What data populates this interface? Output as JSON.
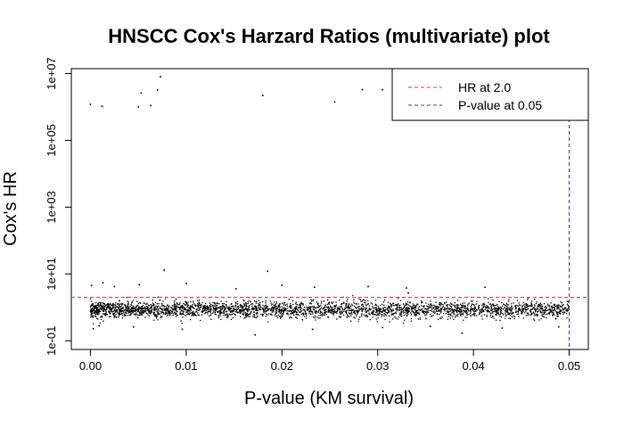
{
  "chart_data": {
    "type": "scatter",
    "title": "HNSCC Cox's Harzard Ratios (multivariate) plot",
    "xlabel": "P-value (KM survival)",
    "ylabel": "Cox's HR",
    "x_ticks": [
      0.0,
      0.01,
      0.02,
      0.03,
      0.04,
      0.05
    ],
    "x_tick_labels": [
      "0.00",
      "0.01",
      "0.02",
      "0.03",
      "0.04",
      "0.05"
    ],
    "y_ticks": [
      0.1,
      10,
      1000,
      100000,
      10000000
    ],
    "y_tick_labels": [
      "1e-01",
      "1e+01",
      "1e+03",
      "1e+05",
      "1e+07"
    ],
    "xlim": [
      -0.002,
      0.052
    ],
    "ylim": [
      0.055,
      14000000
    ],
    "y_scale": "log",
    "grid": false,
    "legend_position": "top-right",
    "hr_line": 2.0,
    "pvalue_line": 0.05,
    "colors": {
      "points": "#000000",
      "hr_line": "#dd3b3b",
      "pvalue_line": "#3b3bdd"
    },
    "legend": [
      {
        "label": "HR at 2.0",
        "color": "#dd3b3b"
      },
      {
        "label": "P-value at 0.05",
        "color": "#3b3bdd"
      }
    ],
    "outliers": [
      {
        "x": 0.0,
        "y": 1200000
      },
      {
        "x": 0.0012,
        "y": 1050000
      },
      {
        "x": 0.005,
        "y": 1000000
      },
      {
        "x": 0.0053,
        "y": 2600000
      },
      {
        "x": 0.0063,
        "y": 1100000
      },
      {
        "x": 0.007,
        "y": 3200000
      },
      {
        "x": 0.0073,
        "y": 8000000
      },
      {
        "x": 0.018,
        "y": 2200000
      },
      {
        "x": 0.0255,
        "y": 1400000
      },
      {
        "x": 0.0284,
        "y": 3300000
      },
      {
        "x": 0.0305,
        "y": 3300000
      },
      {
        "x": 0.0001,
        "y": 4.5
      },
      {
        "x": 0.0013,
        "y": 5.5
      },
      {
        "x": 0.0025,
        "y": 4.2
      },
      {
        "x": 0.0051,
        "y": 4.8
      },
      {
        "x": 0.0077,
        "y": 13
      },
      {
        "x": 0.01,
        "y": 5.2
      },
      {
        "x": 0.0152,
        "y": 3.6
      },
      {
        "x": 0.0185,
        "y": 12
      },
      {
        "x": 0.02,
        "y": 4.6
      },
      {
        "x": 0.0234,
        "y": 4.0
      },
      {
        "x": 0.029,
        "y": 4.2
      },
      {
        "x": 0.033,
        "y": 3.8
      },
      {
        "x": 0.0332,
        "y": 2.7
      },
      {
        "x": 0.0412,
        "y": 4.0
      },
      {
        "x": 0.0003,
        "y": 0.23
      },
      {
        "x": 0.0009,
        "y": 0.28
      },
      {
        "x": 0.0045,
        "y": 0.26
      },
      {
        "x": 0.0096,
        "y": 0.22
      },
      {
        "x": 0.0172,
        "y": 0.15
      },
      {
        "x": 0.0232,
        "y": 0.22
      },
      {
        "x": 0.0305,
        "y": 0.25
      },
      {
        "x": 0.0355,
        "y": 0.27
      },
      {
        "x": 0.0388,
        "y": 0.17
      },
      {
        "x": 0.043,
        "y": 0.24
      },
      {
        "x": 0.0489,
        "y": 0.26
      }
    ],
    "cluster_summary": {
      "n_points": 3200,
      "x_range": [
        0.0,
        0.05
      ],
      "y_median": 0.85,
      "y_log10_spread": 0.12
    }
  }
}
